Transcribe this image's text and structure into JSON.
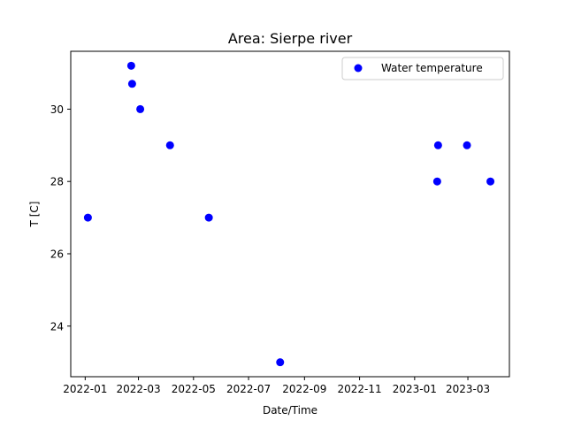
{
  "chart_data": {
    "type": "scatter",
    "title": "Area: Sierpe river",
    "xlabel": "Date/Time",
    "ylabel": "T [C]",
    "x_axis_type": "date",
    "xlim": [
      "2021-12-16",
      "2023-04-16"
    ],
    "ylim": [
      22.6,
      31.6
    ],
    "xticks": [
      "2022-01",
      "2022-03",
      "2022-05",
      "2022-07",
      "2022-09",
      "2022-11",
      "2023-01",
      "2023-03"
    ],
    "yticks": [
      24,
      26,
      28,
      30
    ],
    "grid": false,
    "legend_position": "top-right",
    "series": [
      {
        "name": "Water temperature",
        "color": "#0000ff",
        "points": [
          {
            "x": "2022-01-04",
            "y": 27
          },
          {
            "x": "2022-02-21",
            "y": 31.2
          },
          {
            "x": "2022-02-22",
            "y": 30.7
          },
          {
            "x": "2022-03-03",
            "y": 30
          },
          {
            "x": "2022-04-05",
            "y": 29
          },
          {
            "x": "2022-05-18",
            "y": 27
          },
          {
            "x": "2022-08-05",
            "y": 23
          },
          {
            "x": "2023-01-26",
            "y": 28
          },
          {
            "x": "2023-01-27",
            "y": 29
          },
          {
            "x": "2023-02-28",
            "y": 29
          },
          {
            "x": "2023-03-26",
            "y": 28
          }
        ]
      }
    ]
  }
}
